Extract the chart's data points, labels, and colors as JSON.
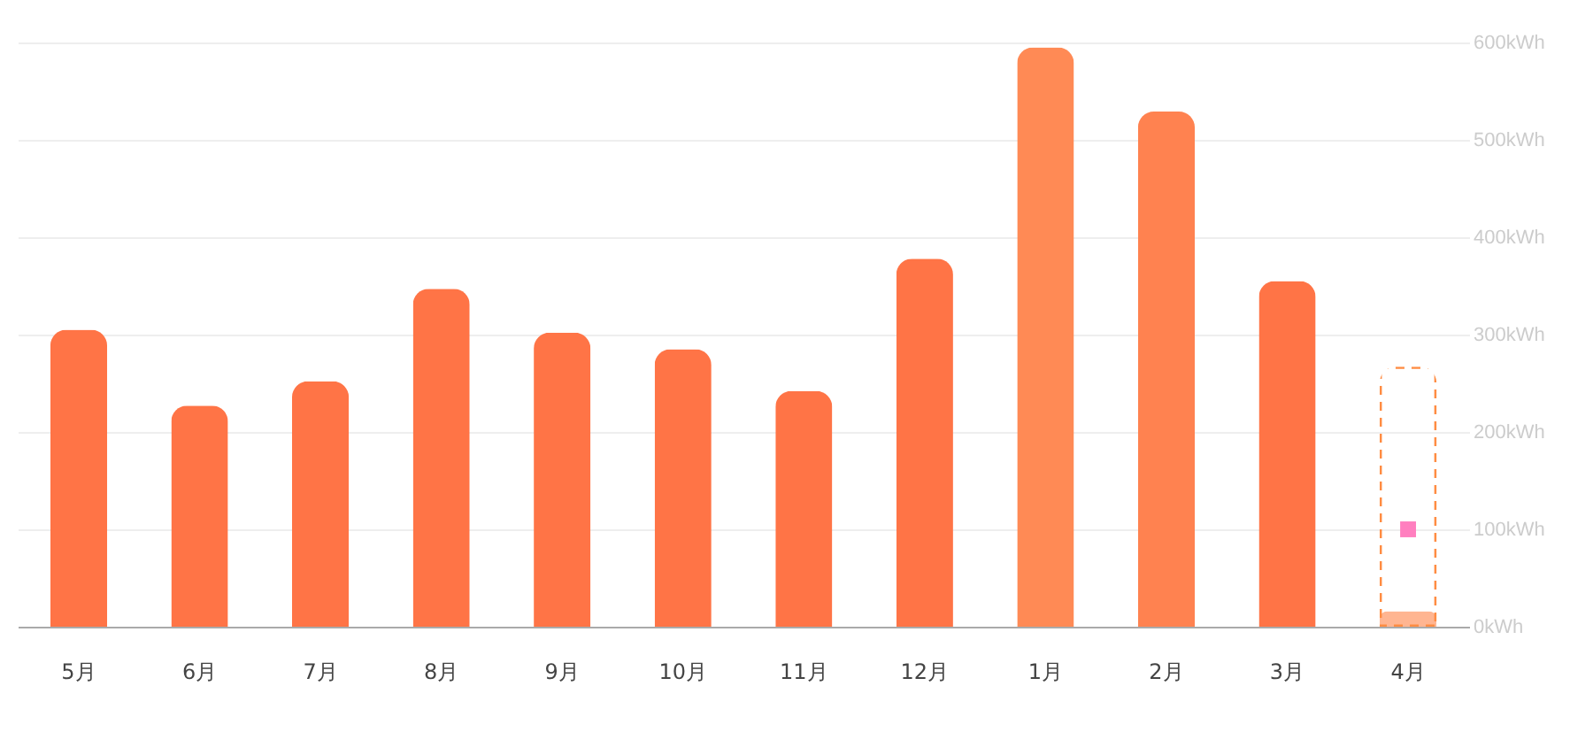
{
  "chart_data": {
    "type": "bar",
    "categories": [
      "5月",
      "6月",
      "7月",
      "8月",
      "9月",
      "10月",
      "11月",
      "12月",
      "1月",
      "2月",
      "3月",
      "4月"
    ],
    "series": [
      {
        "colors": [
          "#ff7446",
          "#ff7446",
          "#ff7446",
          "#ff7446",
          "#ff7446",
          "#ff7446",
          "#ff7446",
          "#ff7446",
          "#ff8a55",
          "#ff8250",
          "#ff7446",
          "#ffb591"
        ],
        "values": [
          305,
          227,
          252,
          347,
          302,
          285,
          242,
          378,
          595,
          529,
          355,
          16
        ]
      },
      {
        "type": "bar",
        "color": "#ff8c42",
        "line_style": "dashed",
        "values": [
          null,
          null,
          null,
          null,
          null,
          null,
          null,
          null,
          null,
          null,
          null,
          267
        ]
      },
      {
        "type": "scatter",
        "color": "#ff7fbf",
        "marker": "square",
        "values": [
          null,
          null,
          null,
          null,
          null,
          null,
          null,
          null,
          null,
          null,
          null,
          100
        ]
      }
    ],
    "ylim": [
      0,
      600
    ],
    "yticks": [
      {
        "value": 0,
        "label": "0kWh"
      },
      {
        "value": 100,
        "label": "100kWh"
      },
      {
        "value": 200,
        "label": "200kWh"
      },
      {
        "value": 300,
        "label": "300kWh"
      },
      {
        "value": 400,
        "label": "400kWh"
      },
      {
        "value": 500,
        "label": "500kWh"
      },
      {
        "value": 600,
        "label": "600kWh"
      }
    ],
    "grid": "y"
  }
}
